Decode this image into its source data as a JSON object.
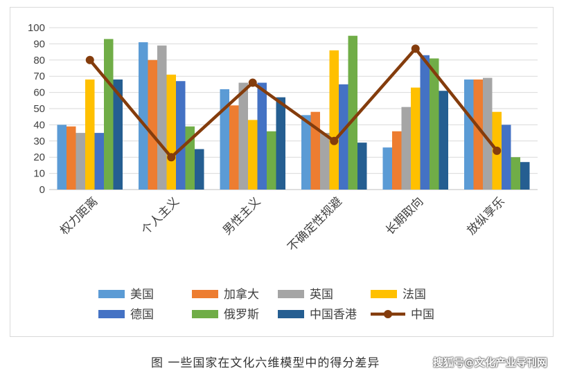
{
  "chart_data": {
    "type": "bar",
    "title": "",
    "xlabel": "",
    "ylabel": "",
    "ylim": [
      0,
      100
    ],
    "yticks": [
      0,
      10,
      20,
      30,
      40,
      50,
      60,
      70,
      80,
      90,
      100
    ],
    "grid": true,
    "categories": [
      "权力距离",
      "个人主义",
      "男性主义",
      "不确定性规避",
      "长期取向",
      "放纵享乐"
    ],
    "series": [
      {
        "name": "美国",
        "color": "#5b9bd5",
        "values": [
          40,
          91,
          62,
          46,
          26,
          68
        ]
      },
      {
        "name": "加拿大",
        "color": "#ed7d31",
        "values": [
          39,
          80,
          52,
          48,
          36,
          68
        ]
      },
      {
        "name": "英国",
        "color": "#a5a5a5",
        "values": [
          35,
          89,
          66,
          35,
          51,
          69
        ]
      },
      {
        "name": "法国",
        "color": "#ffc000",
        "values": [
          68,
          71,
          43,
          86,
          63,
          48
        ]
      },
      {
        "name": "德国",
        "color": "#4472c4",
        "values": [
          35,
          67,
          66,
          65,
          83,
          40
        ]
      },
      {
        "name": "俄罗斯",
        "color": "#70ad47",
        "values": [
          93,
          39,
          36,
          95,
          81,
          20
        ]
      },
      {
        "name": "中国香港",
        "color": "#255e91",
        "values": [
          68,
          25,
          57,
          29,
          61,
          17
        ]
      }
    ],
    "line_series": {
      "name": "中国",
      "color": "#843c0c",
      "values": [
        80,
        20,
        66,
        30,
        87,
        24
      ]
    },
    "legend_position": "bottom"
  },
  "caption": "图 一些国家在文化六维模型中的得分差异",
  "watermark": "搜狐号@文化产业导刊网"
}
